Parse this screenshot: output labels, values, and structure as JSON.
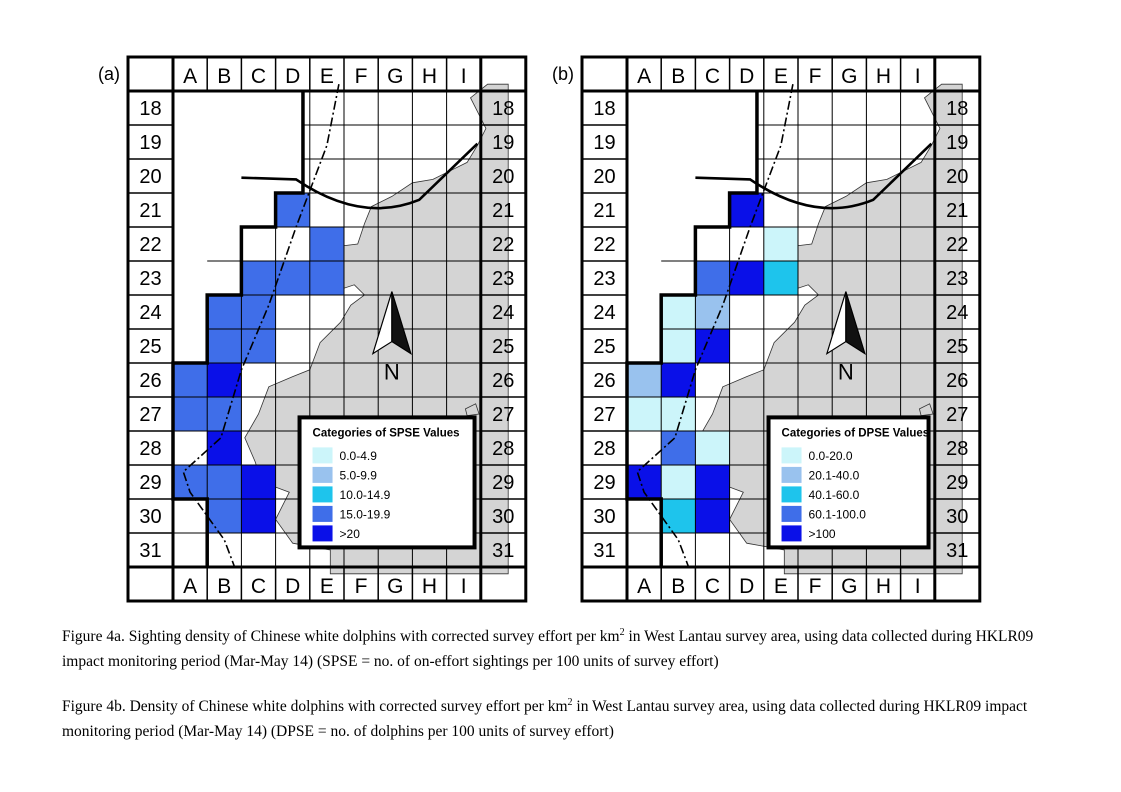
{
  "columns": [
    "A",
    "B",
    "C",
    "D",
    "E",
    "F",
    "G",
    "H",
    "I"
  ],
  "rows": [
    "18",
    "19",
    "20",
    "21",
    "22",
    "23",
    "24",
    "25",
    "26",
    "27",
    "28",
    "29",
    "30",
    "31"
  ],
  "north_label": "N",
  "colors": {
    "c1": "#ccf5fa",
    "c2": "#99c2ee",
    "c3": "#1ec4ec",
    "c4": "#3f6ee9",
    "c5": "#0a10e8",
    "land": "#d4d4d4",
    "grid": "#000000"
  },
  "panels": [
    {
      "tag": "(a)",
      "legend_title": "Categories of SPSE Values",
      "legend": [
        "0.0-4.9",
        "5.0-9.9",
        "10.0-14.9",
        "15.0-19.9",
        ">20"
      ],
      "cells": [
        {
          "c": "D",
          "r": "21",
          "v": 4
        },
        {
          "c": "E",
          "r": "22",
          "v": 4
        },
        {
          "c": "C",
          "r": "23",
          "v": 4
        },
        {
          "c": "D",
          "r": "23",
          "v": 4
        },
        {
          "c": "E",
          "r": "23",
          "v": 4
        },
        {
          "c": "B",
          "r": "24",
          "v": 4
        },
        {
          "c": "C",
          "r": "24",
          "v": 4
        },
        {
          "c": "B",
          "r": "25",
          "v": 4
        },
        {
          "c": "C",
          "r": "25",
          "v": 4
        },
        {
          "c": "A",
          "r": "26",
          "v": 4
        },
        {
          "c": "B",
          "r": "26",
          "v": 5
        },
        {
          "c": "A",
          "r": "27",
          "v": 4
        },
        {
          "c": "B",
          "r": "27",
          "v": 4
        },
        {
          "c": "B",
          "r": "28",
          "v": 5
        },
        {
          "c": "A",
          "r": "29",
          "v": 4
        },
        {
          "c": "B",
          "r": "29",
          "v": 4
        },
        {
          "c": "C",
          "r": "29",
          "v": 5
        },
        {
          "c": "B",
          "r": "30",
          "v": 4
        },
        {
          "c": "C",
          "r": "30",
          "v": 5
        }
      ]
    },
    {
      "tag": "(b)",
      "legend_title": "Categories of DPSE Values",
      "legend": [
        "0.0-20.0",
        "20.1-40.0",
        "40.1-60.0",
        "60.1-100.0",
        ">100"
      ],
      "cells": [
        {
          "c": "D",
          "r": "21",
          "v": 5
        },
        {
          "c": "E",
          "r": "22",
          "v": 1
        },
        {
          "c": "C",
          "r": "23",
          "v": 4
        },
        {
          "c": "D",
          "r": "23",
          "v": 5
        },
        {
          "c": "E",
          "r": "23",
          "v": 3
        },
        {
          "c": "B",
          "r": "24",
          "v": 1
        },
        {
          "c": "C",
          "r": "24",
          "v": 2
        },
        {
          "c": "B",
          "r": "25",
          "v": 1
        },
        {
          "c": "C",
          "r": "25",
          "v": 5
        },
        {
          "c": "A",
          "r": "26",
          "v": 2
        },
        {
          "c": "B",
          "r": "26",
          "v": 5
        },
        {
          "c": "A",
          "r": "27",
          "v": 1
        },
        {
          "c": "B",
          "r": "27",
          "v": 1
        },
        {
          "c": "B",
          "r": "28",
          "v": 4
        },
        {
          "c": "C",
          "r": "28",
          "v": 1
        },
        {
          "c": "A",
          "r": "29",
          "v": 5
        },
        {
          "c": "B",
          "r": "29",
          "v": 1
        },
        {
          "c": "C",
          "r": "29",
          "v": 5
        },
        {
          "c": "B",
          "r": "30",
          "v": 3
        },
        {
          "c": "C",
          "r": "30",
          "v": 5
        }
      ]
    }
  ],
  "captions": {
    "a": {
      "pre": "Figure 4a.  Sighting density of Chinese white dolphins with corrected survey effort per km",
      "sup": "2",
      "post": " in West Lantau survey area, using data collected during HKLR09 impact monitoring period (Mar-May 14) (SPSE = no. of on-effort sightings per 100 units of survey effort)"
    },
    "b": {
      "pre": "Figure 4b.  Density of Chinese white dolphins with corrected survey effort per km",
      "sup": "2",
      "post": " in West Lantau survey area, using data collected during HKLR09 impact monitoring period (Mar-May 14) (DPSE = no. of dolphins per 100 units of survey effort)"
    }
  }
}
